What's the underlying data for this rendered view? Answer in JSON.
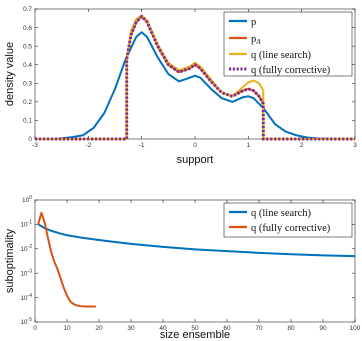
{
  "chart_data": [
    {
      "type": "line",
      "title": "",
      "xlabel": "support",
      "ylabel": "density value",
      "xlim": [
        -3,
        3
      ],
      "ylim": [
        0,
        0.7
      ],
      "xticks": [
        -3,
        -2,
        -1,
        0,
        1,
        2,
        3
      ],
      "yticks": [
        0,
        0.1,
        0.2,
        0.3,
        0.4,
        0.5,
        0.6,
        0.7
      ],
      "grid": false,
      "legend_position": "top-right",
      "series": [
        {
          "name": "p",
          "color": "#0072BD",
          "style": "solid",
          "x": [
            -3,
            -2.6,
            -2.3,
            -2.1,
            -1.9,
            -1.7,
            -1.5,
            -1.3,
            -1.1,
            -1.0,
            -0.9,
            -0.7,
            -0.5,
            -0.3,
            -0.1,
            0.0,
            0.1,
            0.3,
            0.5,
            0.7,
            0.9,
            1.0,
            1.1,
            1.3,
            1.5,
            1.7,
            1.9,
            2.1,
            2.3,
            2.6,
            3.0
          ],
          "y": [
            0.0,
            0.0,
            0.01,
            0.02,
            0.06,
            0.14,
            0.27,
            0.43,
            0.55,
            0.575,
            0.55,
            0.44,
            0.35,
            0.31,
            0.33,
            0.34,
            0.33,
            0.27,
            0.22,
            0.2,
            0.225,
            0.23,
            0.22,
            0.16,
            0.08,
            0.04,
            0.02,
            0.008,
            0.003,
            0.0,
            0.0
          ]
        },
        {
          "name": "p_A",
          "color": "#D95319",
          "style": "solid",
          "x": [
            -3,
            -1.28,
            -1.28,
            -1.2,
            -1.1,
            -1.0,
            -0.9,
            -0.7,
            -0.5,
            -0.3,
            -0.1,
            0.0,
            0.1,
            0.3,
            0.5,
            0.7,
            0.9,
            1.0,
            1.1,
            1.2,
            1.28,
            1.28,
            3.0
          ],
          "y": [
            0.0,
            0.0,
            0.43,
            0.56,
            0.63,
            0.66,
            0.63,
            0.5,
            0.4,
            0.36,
            0.38,
            0.4,
            0.38,
            0.31,
            0.25,
            0.23,
            0.26,
            0.27,
            0.26,
            0.23,
            0.19,
            0.0,
            0.0
          ]
        },
        {
          "name": "q (line search)",
          "color": "#EDB120",
          "style": "solid",
          "x": [
            -3,
            -1.28,
            -1.28,
            -1.2,
            -1.1,
            -1.0,
            -0.9,
            -0.7,
            -0.5,
            -0.3,
            -0.1,
            0.0,
            0.1,
            0.3,
            0.5,
            0.7,
            0.9,
            1.0,
            1.1,
            1.2,
            1.28,
            1.28,
            3.0
          ],
          "y": [
            0.0,
            0.0,
            0.43,
            0.58,
            0.645,
            0.665,
            0.64,
            0.51,
            0.41,
            0.37,
            0.39,
            0.41,
            0.39,
            0.32,
            0.25,
            0.23,
            0.28,
            0.305,
            0.315,
            0.3,
            0.26,
            0.0,
            0.0
          ]
        },
        {
          "name": "q (fully corrective)",
          "color": "#7E2F8E",
          "style": "dotted",
          "x": [
            -3,
            -1.28,
            -1.28,
            -1.2,
            -1.1,
            -1.0,
            -0.9,
            -0.7,
            -0.5,
            -0.3,
            -0.1,
            0.0,
            0.1,
            0.3,
            0.5,
            0.7,
            0.9,
            1.0,
            1.1,
            1.2,
            1.28,
            1.28,
            3.0
          ],
          "y": [
            0.0,
            0.0,
            0.43,
            0.56,
            0.63,
            0.66,
            0.63,
            0.5,
            0.4,
            0.36,
            0.38,
            0.4,
            0.38,
            0.31,
            0.25,
            0.23,
            0.26,
            0.27,
            0.26,
            0.23,
            0.19,
            0.0,
            0.0
          ]
        }
      ]
    },
    {
      "type": "line",
      "title": "",
      "xlabel": "size ensemble",
      "ylabel": "suboptimality",
      "xscale": "linear",
      "yscale": "log",
      "xlim": [
        0,
        100
      ],
      "ylim": [
        1e-05,
        1
      ],
      "xticks": [
        0,
        10,
        20,
        30,
        40,
        50,
        60,
        70,
        80,
        90,
        100
      ],
      "yticks": [
        1e-05,
        0.0001,
        0.001,
        0.01,
        0.1,
        1
      ],
      "grid": false,
      "legend_position": "top-right",
      "series": [
        {
          "name": "q (line search)",
          "color": "#0072BD",
          "style": "solid",
          "x": [
            1,
            2,
            3,
            5,
            8,
            10,
            15,
            20,
            25,
            30,
            40,
            50,
            60,
            70,
            80,
            90,
            100
          ],
          "y": [
            0.1,
            0.085,
            0.07,
            0.055,
            0.042,
            0.036,
            0.028,
            0.023,
            0.019,
            0.016,
            0.012,
            0.0095,
            0.008,
            0.0068,
            0.006,
            0.0054,
            0.005
          ]
        },
        {
          "name": "q (fully corrective)",
          "color": "#D95319",
          "style": "solid",
          "x": [
            1,
            2,
            3,
            4,
            5,
            6,
            7,
            8,
            9,
            10,
            11,
            12,
            13,
            14,
            16,
            19
          ],
          "y": [
            0.1,
            0.3,
            0.12,
            0.03,
            0.008,
            0.003,
            0.0015,
            0.0006,
            0.00025,
            0.00012,
            7e-05,
            5.5e-05,
            4.8e-05,
            4.5e-05,
            4.3e-05,
            4.3e-05
          ]
        }
      ]
    }
  ]
}
